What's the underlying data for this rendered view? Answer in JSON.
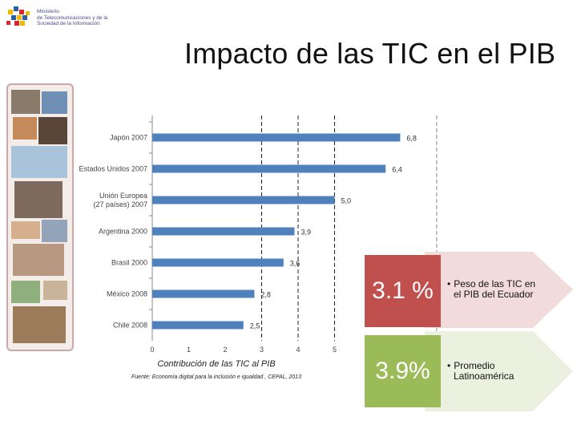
{
  "logo": {
    "line1": "Ministerio",
    "line2": "de Telecomunicaciones y de la",
    "line3": "Sociedad de la Información"
  },
  "title": "Impacto de las TIC en el PIB",
  "chart_data": {
    "type": "bar",
    "orientation": "horizontal",
    "categories": [
      "Japón 2007",
      "Estados Unidos 2007",
      "Unión Europea (27 países) 2007",
      "Argentina 2000",
      "Brasil 2000",
      "México 2008",
      "Chile 2008"
    ],
    "category_lines": [
      [
        "Japón 2007"
      ],
      [
        "Estados Unidos 2007"
      ],
      [
        "Unión Europea",
        "(27 países) 2007"
      ],
      [
        "Argentina 2000"
      ],
      [
        "Brasil 2000"
      ],
      [
        "México 2008"
      ],
      [
        "Chile 2008"
      ]
    ],
    "values": [
      6.8,
      6.4,
      5.0,
      3.9,
      3.6,
      2.8,
      2.5
    ],
    "value_labels": [
      "6,8",
      "6,4",
      "5,0",
      "3,9",
      "3,6",
      "2,8",
      "2,5"
    ],
    "xticks": [
      "0",
      "1",
      "2",
      "3",
      "4",
      "5"
    ],
    "xlim": [
      0,
      7
    ],
    "bar_color": "#4f81bd",
    "grid": "dashed vertical at 3, 4, 5",
    "xlabel": "Contribución de las TIC al PIB",
    "source": "Fuente: Economía digital para la inclusión e igualdad , CEPAL, 2013"
  },
  "stats": [
    {
      "value": "3.1 %",
      "text_line1": "Peso de las TIC en",
      "text_line2": "el PIB del Ecuador",
      "color": "#c0504d"
    },
    {
      "value": "3.9%",
      "text_line1": "Promedio",
      "text_line2": "Latinoamérica",
      "color": "#9bbb59"
    }
  ],
  "colors": {
    "arrow_pink": "#f2dcdb",
    "arrow_green": "#ebf1de"
  }
}
